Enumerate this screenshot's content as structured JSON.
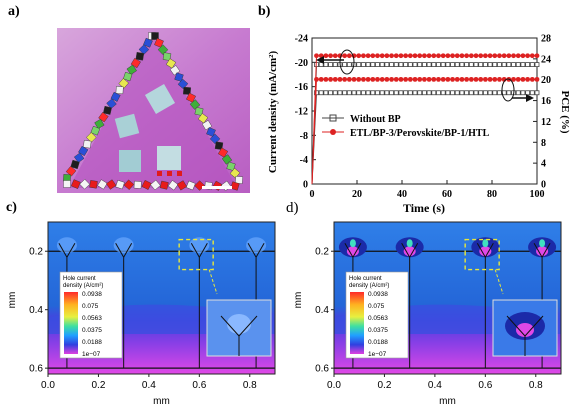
{
  "panels": {
    "a": "a)",
    "b": "b)",
    "c": "c)",
    "d": "d)"
  },
  "chart_data": [
    {
      "type": "line",
      "panel": "b",
      "xlabel": "Time (s)",
      "ylabel_left": "Current density (mA/cm²)",
      "ylabel_right": "PCE (%)",
      "xlim": [
        0,
        100
      ],
      "ylim_left": [
        0,
        -24
      ],
      "ylim_right": [
        0,
        28
      ],
      "x_ticks": [
        "0",
        "20",
        "40",
        "60",
        "80",
        "100"
      ],
      "y_left_ticks": [
        "0",
        "-4",
        "-8",
        "-12",
        "-16",
        "-20",
        "-24"
      ],
      "y_right_ticks": [
        "0",
        "4",
        "8",
        "12",
        "16",
        "20",
        "24",
        "28"
      ],
      "legend_location": "center-right",
      "series": [
        {
          "name": "Without BP",
          "axis": "left",
          "marker": "open-square",
          "color": "#444444",
          "x": [
            0,
            2,
            100
          ],
          "values": [
            0,
            -15.0,
            -15.0
          ]
        },
        {
          "name": "Without BP",
          "axis": "right",
          "marker": "open-square",
          "color": "#444444",
          "x": [
            0,
            2,
            100
          ],
          "values": [
            0,
            22.9,
            22.9
          ]
        },
        {
          "name": "ETL/BP-3/Perovskite/BP-1/HTL",
          "axis": "left",
          "marker": "filled-circle",
          "color": "#dd2222",
          "x": [
            0,
            2,
            100
          ],
          "values": [
            0,
            -17.2,
            -17.2
          ]
        },
        {
          "name": "ETL/BP-3/Perovskite/BP-1/HTL",
          "axis": "right",
          "marker": "filled-circle",
          "color": "#dd2222",
          "x": [
            0,
            2,
            100
          ],
          "values": [
            0,
            24.6,
            24.6
          ]
        }
      ]
    },
    {
      "type": "heatmap",
      "panel": "c",
      "xlabel": "mm",
      "ylabel": "mm",
      "x_ticks": [
        "0.0",
        "0.2",
        "0.4",
        "0.6",
        "0.8"
      ],
      "y_ticks": [
        "0.2",
        "0.4",
        "0.6"
      ],
      "xlim": [
        0,
        0.9
      ],
      "ylim": [
        0.1,
        0.62
      ],
      "colorbar_title": "Hole current density (A/cm²)",
      "colorbar_ticks": [
        "0.0938",
        "0.075",
        "0.0563",
        "0.0375",
        "0.0188",
        "1e−07"
      ]
    },
    {
      "type": "heatmap",
      "panel": "d",
      "xlabel": "mm",
      "ylabel": "mm",
      "x_ticks": [
        "0.0",
        "0.2",
        "0.4",
        "0.6",
        "0.8"
      ],
      "y_ticks": [
        "0.2",
        "0.4",
        "0.6"
      ],
      "xlim": [
        0,
        0.9
      ],
      "ylim": [
        0.1,
        0.62
      ],
      "colorbar_title": "Hole current density (A/cm²)",
      "colorbar_ticks": [
        "0.0938",
        "0.075",
        "0.0563",
        "0.0375",
        "0.0188",
        "1e−07"
      ]
    }
  ],
  "colors": {
    "heatmap_top": "#2a6fe0",
    "heatmap_bottom": "#e040e0",
    "grid_line": "#111111"
  }
}
